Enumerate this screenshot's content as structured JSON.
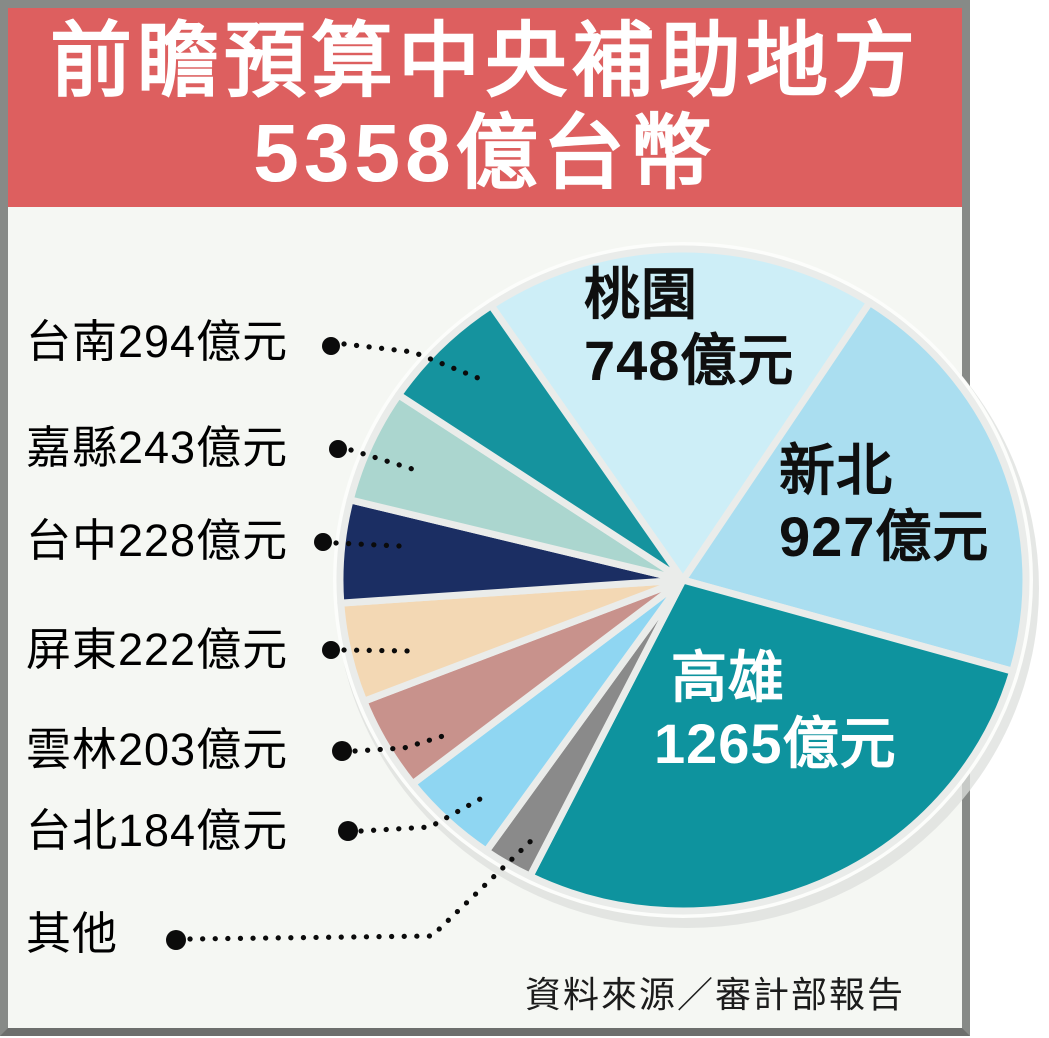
{
  "title": {
    "line1": "前瞻預算中央補助地方",
    "line2": "5358億台幣"
  },
  "source": {
    "text": "資料來源／審計部報告"
  },
  "colors": {
    "banner_red": "#dd5f5f",
    "card_background": "#f5f7f3",
    "frame_gray": "#878a87",
    "title_text": "#ffffff",
    "label_text": "#000000",
    "slice_gap": "#eaecea"
  },
  "legend": {
    "items": [
      {
        "text": "台南294億元"
      },
      {
        "text": "嘉縣243億元"
      },
      {
        "text": "台中228億元"
      },
      {
        "text": "屏東222億元"
      },
      {
        "text": "雲林203億元"
      },
      {
        "text": "台北184億元"
      },
      {
        "text": "其他"
      }
    ]
  },
  "chart_data": {
    "type": "pie",
    "title": "前瞻預算中央補助地方5358億台幣",
    "total_value": 5358,
    "unit": "億元",
    "legend_position": "left",
    "slices": [
      {
        "id": "taoyuan",
        "label": "桃園",
        "value": 748,
        "color": "#cdeef7",
        "display": {
          "start_deg": -34,
          "end_deg": 33
        },
        "callout": {
          "name": "桃園",
          "amount": "748億元",
          "text_color": "#0f0f0f"
        }
      },
      {
        "id": "xinbei",
        "label": "新北",
        "value": 927,
        "color": "#aadef0",
        "display": {
          "start_deg": 33,
          "end_deg": 106
        },
        "callout": {
          "name": "新北",
          "amount": "927億元",
          "text_color": "#0f0f0f"
        }
      },
      {
        "id": "kaohsiung",
        "label": "高雄",
        "value": 1265,
        "color": "#0e939e",
        "display": {
          "start_deg": 106,
          "end_deg": 206.5
        },
        "callout": {
          "name": "高雄",
          "amount": "1265億元",
          "text_color": "#ffffff"
        }
      },
      {
        "id": "other",
        "label": "其他",
        "value": null,
        "color": "#8a8a8a",
        "display": {
          "start_deg": 206.5,
          "end_deg": 215
        }
      },
      {
        "id": "taipei",
        "label": "台北",
        "value": 184,
        "color": "#8fd6f2",
        "display": {
          "start_deg": 215,
          "end_deg": 232
        }
      },
      {
        "id": "yunlin",
        "label": "雲林",
        "value": 203,
        "color": "#c8928c",
        "display": {
          "start_deg": 232,
          "end_deg": 248.5
        }
      },
      {
        "id": "pingtung",
        "label": "屏東",
        "value": 222,
        "color": "#f3d8b4",
        "display": {
          "start_deg": 248.5,
          "end_deg": 266
        }
      },
      {
        "id": "taichung",
        "label": "台中",
        "value": 228,
        "color": "#1b2e63",
        "display": {
          "start_deg": 266,
          "end_deg": 284
        }
      },
      {
        "id": "chiayi",
        "label": "嘉縣",
        "value": 243,
        "color": "#abd6cf",
        "display": {
          "start_deg": 284,
          "end_deg": 304
        }
      },
      {
        "id": "tainan",
        "label": "台南",
        "value": 294,
        "color": "#15939e",
        "display": {
          "start_deg": 304,
          "end_deg": 326
        }
      }
    ]
  }
}
